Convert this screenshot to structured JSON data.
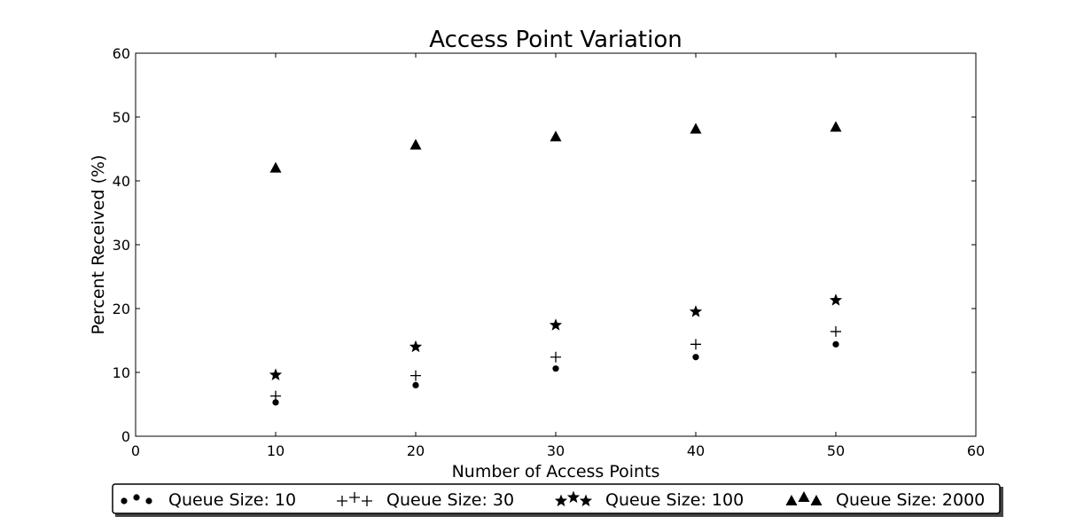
{
  "chart_data": {
    "type": "scatter",
    "title": "Access Point Variation",
    "xlabel": "Number of Access Points",
    "ylabel": "Percent Received (%)",
    "xlim": [
      0,
      60
    ],
    "ylim": [
      0,
      60
    ],
    "xticks": [
      0,
      10,
      20,
      30,
      40,
      50,
      60
    ],
    "yticks": [
      0,
      10,
      20,
      30,
      40,
      50,
      60
    ],
    "grid": false,
    "legend_position": "bottom, below plot",
    "x": [
      10,
      20,
      30,
      40,
      50
    ],
    "series": [
      {
        "name": "Queue Size: 10",
        "marker": "circle",
        "color": "#000000",
        "values": [
          5.3,
          8.0,
          10.6,
          12.4,
          14.4
        ]
      },
      {
        "name": "Queue Size: 30",
        "marker": "plus",
        "color": "#000000",
        "values": [
          6.3,
          9.5,
          12.4,
          14.4,
          16.4
        ]
      },
      {
        "name": "Queue Size: 100",
        "marker": "star",
        "color": "#000000",
        "values": [
          9.6,
          14.0,
          17.4,
          19.5,
          21.3
        ]
      },
      {
        "name": "Queue Size: 2000",
        "marker": "triangle",
        "color": "#000000",
        "values": [
          42.0,
          45.6,
          46.9,
          48.1,
          48.4
        ]
      }
    ]
  }
}
